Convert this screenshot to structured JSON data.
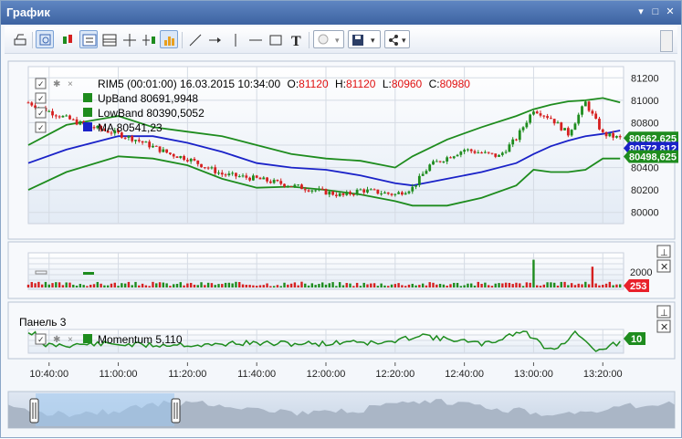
{
  "window": {
    "title": "График",
    "buttons": [
      "▾",
      "□",
      "✕"
    ]
  },
  "toolbar": {
    "zoom_dropdown_arrow": "▾",
    "save_dropdown_arrow": "▾",
    "share_dropdown_arrow": "▾",
    "text_tool_glyph": "T"
  },
  "panel1": {
    "legend": {
      "header": "RIM5 (00:01:00)  16.03.2015 10:34:00",
      "o_label": "O:",
      "o_value": "81120",
      "h_label": "H:",
      "h_value": "81120",
      "l_label": "L:",
      "l_value": "80960",
      "c_label": "C:",
      "c_value": "80980",
      "upband": "UpBand  80691,9948",
      "lowband": "LowBand  80390,5052",
      "ma": "MA  80541,23"
    },
    "y_ticks": [
      "81200",
      "81000",
      "80800",
      "80600",
      "80400",
      "80200",
      "80000"
    ],
    "badges": [
      {
        "text": "80662,625",
        "color": "#1e8c1e"
      },
      {
        "text": "80572,812",
        "color": "#1a22c8"
      },
      {
        "text": "80498,625",
        "color": "#1e8c1e"
      }
    ]
  },
  "panel2": {
    "y_tick": "2000",
    "badge": "253",
    "badge_color": "#e8202a"
  },
  "panel3": {
    "title": "Панель 3",
    "legend": "Momentum  5,110",
    "badge": "10",
    "badge_color": "#1e8c1e"
  },
  "x_axis": {
    "labels": [
      "10:40:00",
      "11:00:00",
      "11:20:00",
      "11:40:00",
      "12:00:00",
      "12:20:00",
      "12:40:00",
      "13:00:00",
      "13:20:00"
    ]
  },
  "colors": {
    "up": "#1e8c1e",
    "down": "#d62020",
    "ma": "#1a22c8",
    "band": "#1e8c1e",
    "volume_up": "#1e8c1e",
    "volume_down": "#d62020"
  },
  "chart_data": {
    "type": "line",
    "title": "RIM5 (00:01:00)",
    "series": [
      {
        "name": "UpBand",
        "x": [
          "10:34",
          "10:45",
          "11:00",
          "11:10",
          "11:20",
          "11:30",
          "11:40",
          "11:50",
          "12:00",
          "12:10",
          "12:20",
          "12:25",
          "12:35",
          "12:45",
          "12:55",
          "13:00",
          "13:05",
          "13:10",
          "13:15",
          "13:20",
          "13:25"
        ],
        "values": [
          80600,
          80780,
          80860,
          80760,
          80720,
          80680,
          80600,
          80520,
          80480,
          80460,
          80400,
          80500,
          80650,
          80760,
          80860,
          80920,
          80960,
          80990,
          81000,
          81020,
          80980
        ]
      },
      {
        "name": "MA",
        "x": [
          "10:34",
          "10:45",
          "11:00",
          "11:10",
          "11:20",
          "11:30",
          "11:40",
          "11:50",
          "12:00",
          "12:10",
          "12:20",
          "12:25",
          "12:35",
          "12:45",
          "12:55",
          "13:00",
          "13:05",
          "13:10",
          "13:15",
          "13:20",
          "13:25"
        ],
        "values": [
          80440,
          80560,
          80680,
          80680,
          80620,
          80540,
          80440,
          80400,
          80380,
          80330,
          80260,
          80240,
          80300,
          80360,
          80440,
          80520,
          80590,
          80640,
          80680,
          80700,
          80730
        ]
      },
      {
        "name": "LowBand",
        "x": [
          "10:34",
          "10:45",
          "11:00",
          "11:10",
          "11:20",
          "11:30",
          "11:40",
          "11:50",
          "12:00",
          "12:10",
          "12:20",
          "12:25",
          "12:35",
          "12:45",
          "12:55",
          "13:00",
          "13:05",
          "13:10",
          "13:15",
          "13:20",
          "13:25"
        ],
        "values": [
          80200,
          80360,
          80500,
          80480,
          80420,
          80300,
          80220,
          80230,
          80200,
          80160,
          80100,
          80060,
          80060,
          80130,
          80240,
          80380,
          80360,
          80360,
          80380,
          80480,
          80480
        ]
      }
    ],
    "close_path": {
      "x": [
        "10:34",
        "10:40",
        "10:50",
        "11:00",
        "11:05",
        "11:15",
        "11:20",
        "11:30",
        "11:40",
        "11:50",
        "12:00",
        "12:05",
        "12:10",
        "12:20",
        "12:25",
        "12:30",
        "12:40",
        "12:50",
        "12:55",
        "13:00",
        "13:05",
        "13:10",
        "13:15",
        "13:20",
        "13:25"
      ],
      "values": [
        80980,
        80900,
        80780,
        80700,
        80650,
        80520,
        80480,
        80340,
        80300,
        80240,
        80180,
        80150,
        80200,
        80160,
        80220,
        80420,
        80560,
        80500,
        80660,
        80920,
        80840,
        80700,
        80980,
        80700,
        80660
      ]
    },
    "ylim": [
      79900,
      81300
    ],
    "volume": {
      "ylim": [
        0,
        3000
      ],
      "y_tick": 2000,
      "last": 253,
      "spikes": [
        {
          "x": "13:00",
          "value": 2400
        },
        {
          "x": "13:17",
          "value": 1800
        }
      ]
    },
    "momentum": {
      "last": 10
    }
  }
}
